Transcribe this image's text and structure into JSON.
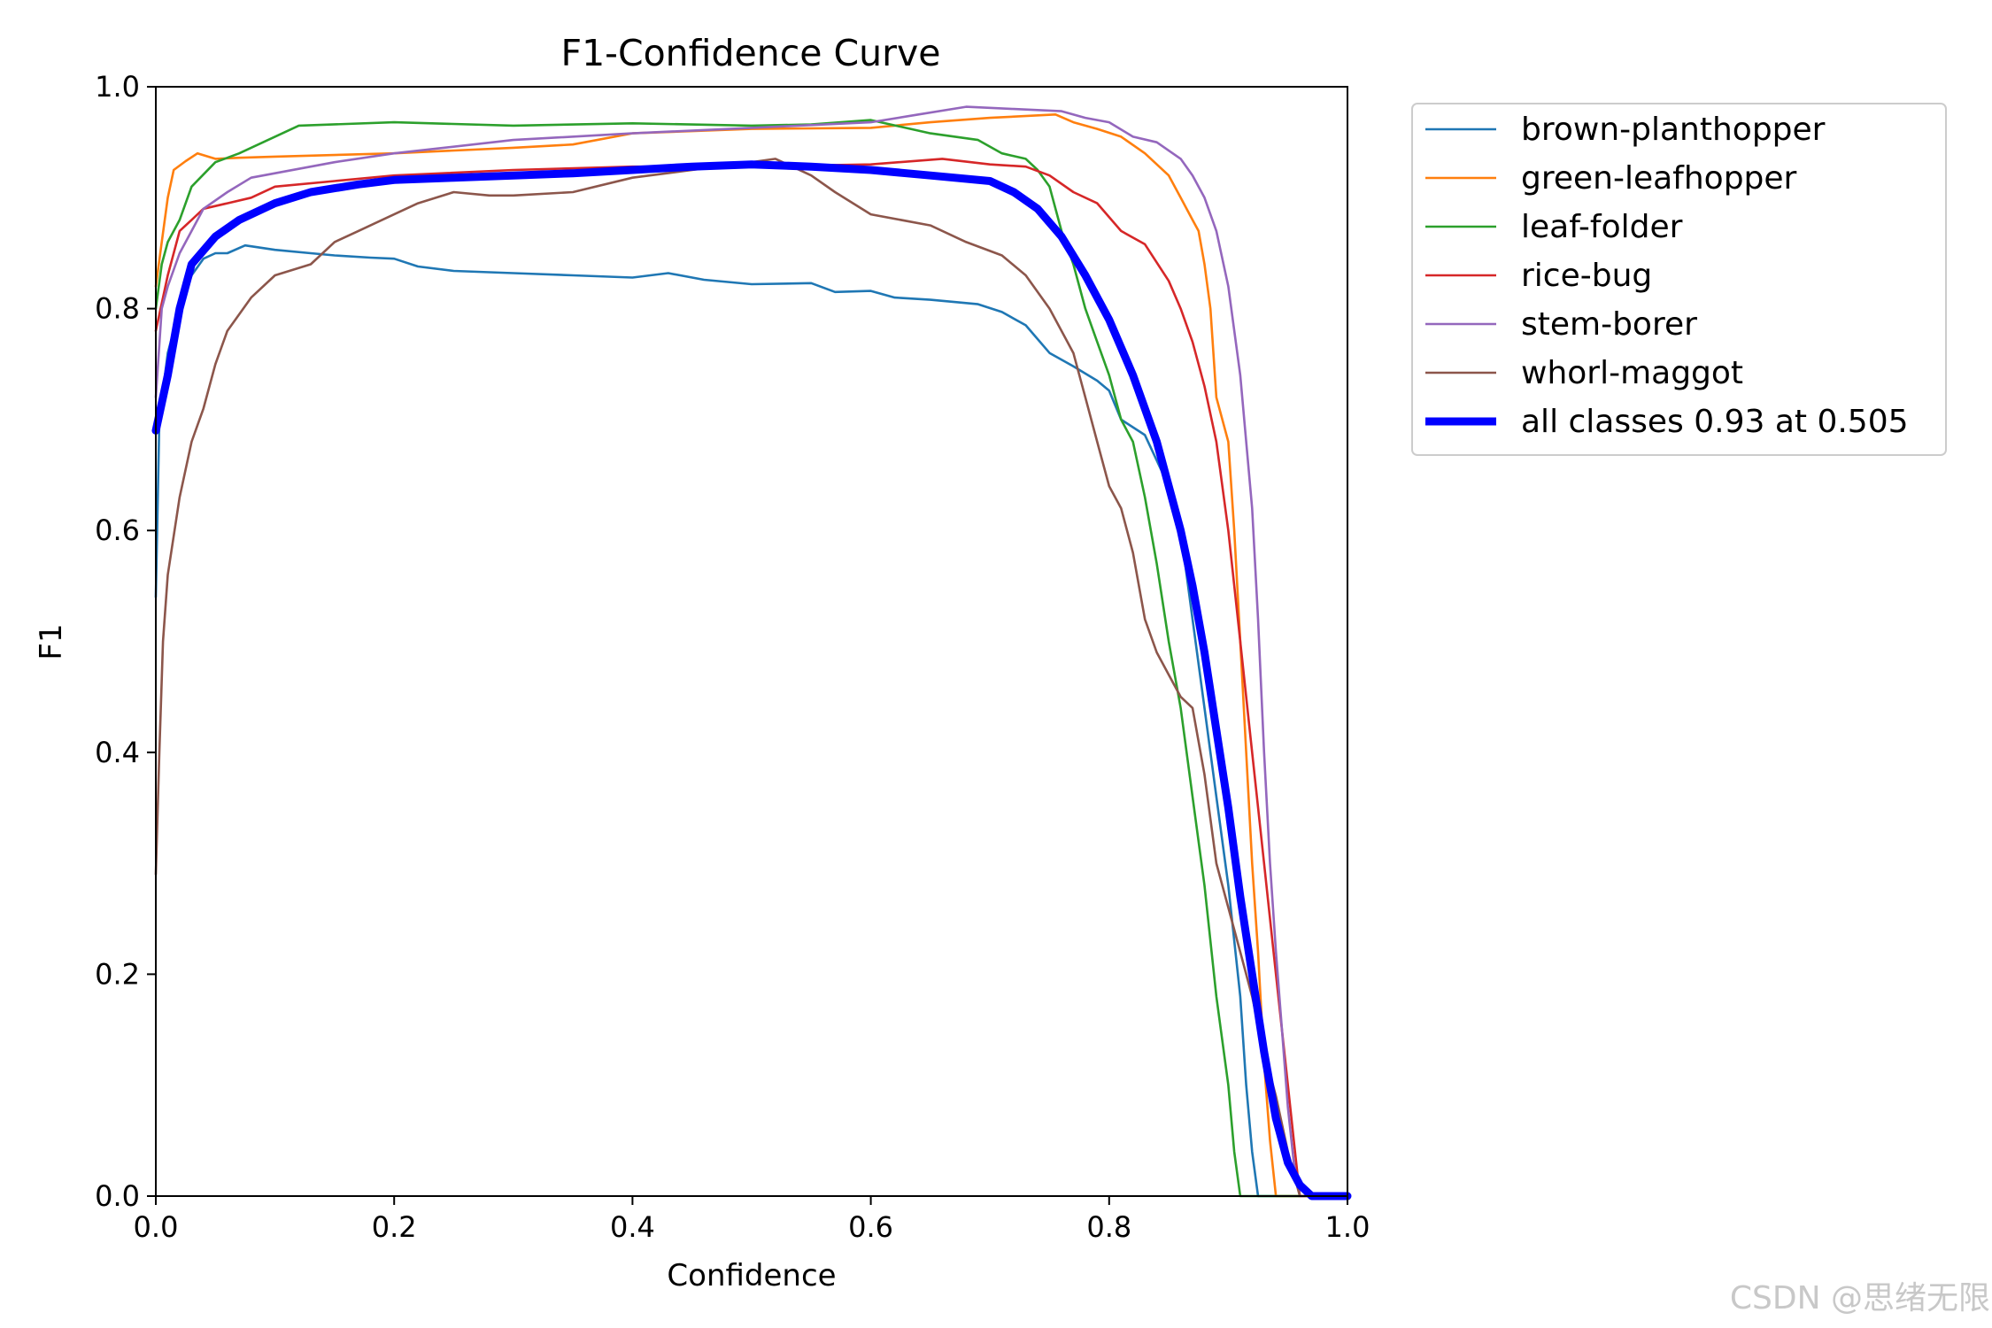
{
  "chart_data": {
    "type": "line",
    "title": "F1-Confidence Curve",
    "xlabel": "Confidence",
    "ylabel": "F1",
    "xlim": [
      0,
      1
    ],
    "ylim": [
      0,
      1
    ],
    "x_ticks": [
      "0.0",
      "0.2",
      "0.4",
      "0.6",
      "0.8",
      "1.0"
    ],
    "y_ticks": [
      "0.0",
      "0.2",
      "0.4",
      "0.6",
      "0.8",
      "1.0"
    ],
    "grid": false,
    "legend_position": "outside-top-right",
    "series": [
      {
        "name": "brown-planthopper",
        "color": "#1f77b4",
        "line_width": "thin",
        "points": [
          [
            0.0,
            0.54
          ],
          [
            0.003,
            0.7
          ],
          [
            0.01,
            0.76
          ],
          [
            0.02,
            0.8
          ],
          [
            0.03,
            0.83
          ],
          [
            0.04,
            0.845
          ],
          [
            0.05,
            0.85
          ],
          [
            0.06,
            0.85
          ],
          [
            0.075,
            0.857
          ],
          [
            0.1,
            0.853
          ],
          [
            0.13,
            0.85
          ],
          [
            0.15,
            0.848
          ],
          [
            0.18,
            0.846
          ],
          [
            0.2,
            0.845
          ],
          [
            0.22,
            0.838
          ],
          [
            0.25,
            0.834
          ],
          [
            0.3,
            0.832
          ],
          [
            0.35,
            0.83
          ],
          [
            0.4,
            0.828
          ],
          [
            0.43,
            0.832
          ],
          [
            0.46,
            0.826
          ],
          [
            0.5,
            0.822
          ],
          [
            0.55,
            0.823
          ],
          [
            0.57,
            0.815
          ],
          [
            0.6,
            0.816
          ],
          [
            0.62,
            0.81
          ],
          [
            0.65,
            0.808
          ],
          [
            0.69,
            0.804
          ],
          [
            0.71,
            0.797
          ],
          [
            0.73,
            0.785
          ],
          [
            0.75,
            0.76
          ],
          [
            0.77,
            0.748
          ],
          [
            0.79,
            0.735
          ],
          [
            0.8,
            0.726
          ],
          [
            0.81,
            0.7
          ],
          [
            0.83,
            0.686
          ],
          [
            0.85,
            0.64
          ],
          [
            0.86,
            0.6
          ],
          [
            0.87,
            0.52
          ],
          [
            0.88,
            0.44
          ],
          [
            0.89,
            0.36
          ],
          [
            0.9,
            0.28
          ],
          [
            0.91,
            0.18
          ],
          [
            0.915,
            0.1
          ],
          [
            0.92,
            0.04
          ],
          [
            0.925,
            0.0
          ],
          [
            1.0,
            0.0
          ]
        ]
      },
      {
        "name": "green-leafhopper",
        "color": "#ff7f0e",
        "line_width": "thin",
        "points": [
          [
            0.0,
            0.82
          ],
          [
            0.005,
            0.86
          ],
          [
            0.01,
            0.9
          ],
          [
            0.015,
            0.925
          ],
          [
            0.025,
            0.933
          ],
          [
            0.035,
            0.94
          ],
          [
            0.05,
            0.935
          ],
          [
            0.07,
            0.936
          ],
          [
            0.1,
            0.937
          ],
          [
            0.2,
            0.94
          ],
          [
            0.3,
            0.945
          ],
          [
            0.35,
            0.948
          ],
          [
            0.4,
            0.958
          ],
          [
            0.5,
            0.962
          ],
          [
            0.6,
            0.963
          ],
          [
            0.65,
            0.968
          ],
          [
            0.7,
            0.972
          ],
          [
            0.755,
            0.975
          ],
          [
            0.77,
            0.968
          ],
          [
            0.79,
            0.962
          ],
          [
            0.81,
            0.955
          ],
          [
            0.83,
            0.94
          ],
          [
            0.85,
            0.92
          ],
          [
            0.86,
            0.9
          ],
          [
            0.87,
            0.88
          ],
          [
            0.875,
            0.87
          ],
          [
            0.88,
            0.84
          ],
          [
            0.885,
            0.8
          ],
          [
            0.89,
            0.72
          ],
          [
            0.9,
            0.68
          ],
          [
            0.905,
            0.6
          ],
          [
            0.91,
            0.5
          ],
          [
            0.915,
            0.4
          ],
          [
            0.92,
            0.3
          ],
          [
            0.925,
            0.22
          ],
          [
            0.93,
            0.12
          ],
          [
            0.935,
            0.05
          ],
          [
            0.94,
            0.0
          ],
          [
            1.0,
            0.0
          ]
        ]
      },
      {
        "name": "leaf-folder",
        "color": "#2ca02c",
        "line_width": "thin",
        "points": [
          [
            0.0,
            0.8
          ],
          [
            0.005,
            0.84
          ],
          [
            0.01,
            0.86
          ],
          [
            0.02,
            0.88
          ],
          [
            0.03,
            0.91
          ],
          [
            0.05,
            0.932
          ],
          [
            0.07,
            0.94
          ],
          [
            0.09,
            0.95
          ],
          [
            0.1,
            0.955
          ],
          [
            0.12,
            0.965
          ],
          [
            0.2,
            0.968
          ],
          [
            0.3,
            0.965
          ],
          [
            0.4,
            0.967
          ],
          [
            0.5,
            0.965
          ],
          [
            0.55,
            0.966
          ],
          [
            0.6,
            0.97
          ],
          [
            0.65,
            0.958
          ],
          [
            0.69,
            0.952
          ],
          [
            0.71,
            0.94
          ],
          [
            0.73,
            0.935
          ],
          [
            0.74,
            0.925
          ],
          [
            0.75,
            0.91
          ],
          [
            0.76,
            0.87
          ],
          [
            0.77,
            0.84
          ],
          [
            0.78,
            0.8
          ],
          [
            0.79,
            0.77
          ],
          [
            0.8,
            0.74
          ],
          [
            0.81,
            0.7
          ],
          [
            0.82,
            0.68
          ],
          [
            0.83,
            0.63
          ],
          [
            0.84,
            0.57
          ],
          [
            0.85,
            0.5
          ],
          [
            0.86,
            0.44
          ],
          [
            0.87,
            0.36
          ],
          [
            0.88,
            0.28
          ],
          [
            0.89,
            0.18
          ],
          [
            0.9,
            0.1
          ],
          [
            0.905,
            0.04
          ],
          [
            0.91,
            0.0
          ],
          [
            1.0,
            0.0
          ]
        ]
      },
      {
        "name": "rice-bug",
        "color": "#d62728",
        "line_width": "thin",
        "points": [
          [
            0.0,
            0.78
          ],
          [
            0.01,
            0.83
          ],
          [
            0.02,
            0.87
          ],
          [
            0.03,
            0.88
          ],
          [
            0.04,
            0.89
          ],
          [
            0.06,
            0.895
          ],
          [
            0.08,
            0.9
          ],
          [
            0.1,
            0.91
          ],
          [
            0.15,
            0.915
          ],
          [
            0.2,
            0.92
          ],
          [
            0.3,
            0.925
          ],
          [
            0.4,
            0.928
          ],
          [
            0.5,
            0.928
          ],
          [
            0.6,
            0.93
          ],
          [
            0.66,
            0.935
          ],
          [
            0.7,
            0.93
          ],
          [
            0.73,
            0.928
          ],
          [
            0.75,
            0.92
          ],
          [
            0.77,
            0.905
          ],
          [
            0.79,
            0.895
          ],
          [
            0.81,
            0.87
          ],
          [
            0.83,
            0.858
          ],
          [
            0.85,
            0.825
          ],
          [
            0.86,
            0.8
          ],
          [
            0.87,
            0.77
          ],
          [
            0.88,
            0.73
          ],
          [
            0.89,
            0.68
          ],
          [
            0.9,
            0.6
          ],
          [
            0.91,
            0.5
          ],
          [
            0.92,
            0.4
          ],
          [
            0.93,
            0.3
          ],
          [
            0.94,
            0.2
          ],
          [
            0.95,
            0.1
          ],
          [
            0.955,
            0.05
          ],
          [
            0.96,
            0.0
          ],
          [
            1.0,
            0.0
          ]
        ]
      },
      {
        "name": "stem-borer",
        "color": "#9467bd",
        "line_width": "thin",
        "points": [
          [
            0.0,
            0.72
          ],
          [
            0.005,
            0.8
          ],
          [
            0.01,
            0.82
          ],
          [
            0.02,
            0.85
          ],
          [
            0.03,
            0.87
          ],
          [
            0.04,
            0.89
          ],
          [
            0.06,
            0.905
          ],
          [
            0.08,
            0.918
          ],
          [
            0.1,
            0.922
          ],
          [
            0.15,
            0.932
          ],
          [
            0.2,
            0.94
          ],
          [
            0.3,
            0.952
          ],
          [
            0.4,
            0.958
          ],
          [
            0.5,
            0.963
          ],
          [
            0.6,
            0.968
          ],
          [
            0.64,
            0.975
          ],
          [
            0.68,
            0.982
          ],
          [
            0.72,
            0.98
          ],
          [
            0.76,
            0.978
          ],
          [
            0.78,
            0.972
          ],
          [
            0.8,
            0.968
          ],
          [
            0.82,
            0.955
          ],
          [
            0.84,
            0.95
          ],
          [
            0.86,
            0.935
          ],
          [
            0.87,
            0.92
          ],
          [
            0.88,
            0.9
          ],
          [
            0.89,
            0.87
          ],
          [
            0.9,
            0.82
          ],
          [
            0.91,
            0.74
          ],
          [
            0.92,
            0.62
          ],
          [
            0.925,
            0.52
          ],
          [
            0.93,
            0.4
          ],
          [
            0.935,
            0.3
          ],
          [
            0.94,
            0.22
          ],
          [
            0.945,
            0.15
          ],
          [
            0.95,
            0.08
          ],
          [
            0.955,
            0.03
          ],
          [
            0.96,
            0.0
          ],
          [
            1.0,
            0.0
          ]
        ]
      },
      {
        "name": "whorl-maggot",
        "color": "#8c564b",
        "line_width": "thin",
        "points": [
          [
            0.0,
            0.29
          ],
          [
            0.003,
            0.4
          ],
          [
            0.006,
            0.5
          ],
          [
            0.01,
            0.56
          ],
          [
            0.02,
            0.63
          ],
          [
            0.03,
            0.68
          ],
          [
            0.04,
            0.71
          ],
          [
            0.05,
            0.75
          ],
          [
            0.06,
            0.78
          ],
          [
            0.08,
            0.81
          ],
          [
            0.1,
            0.83
          ],
          [
            0.13,
            0.84
          ],
          [
            0.15,
            0.86
          ],
          [
            0.17,
            0.87
          ],
          [
            0.2,
            0.885
          ],
          [
            0.22,
            0.895
          ],
          [
            0.25,
            0.905
          ],
          [
            0.28,
            0.902
          ],
          [
            0.3,
            0.902
          ],
          [
            0.35,
            0.905
          ],
          [
            0.4,
            0.918
          ],
          [
            0.45,
            0.925
          ],
          [
            0.5,
            0.932
          ],
          [
            0.52,
            0.935
          ],
          [
            0.55,
            0.92
          ],
          [
            0.57,
            0.905
          ],
          [
            0.6,
            0.885
          ],
          [
            0.65,
            0.875
          ],
          [
            0.68,
            0.86
          ],
          [
            0.71,
            0.848
          ],
          [
            0.73,
            0.83
          ],
          [
            0.75,
            0.8
          ],
          [
            0.77,
            0.76
          ],
          [
            0.78,
            0.72
          ],
          [
            0.79,
            0.68
          ],
          [
            0.8,
            0.64
          ],
          [
            0.81,
            0.62
          ],
          [
            0.82,
            0.58
          ],
          [
            0.83,
            0.52
          ],
          [
            0.84,
            0.49
          ],
          [
            0.85,
            0.47
          ],
          [
            0.86,
            0.45
          ],
          [
            0.87,
            0.44
          ],
          [
            0.88,
            0.38
          ],
          [
            0.89,
            0.3
          ],
          [
            0.9,
            0.26
          ],
          [
            0.91,
            0.22
          ],
          [
            0.92,
            0.18
          ],
          [
            0.93,
            0.13
          ],
          [
            0.94,
            0.09
          ],
          [
            0.95,
            0.04
          ],
          [
            0.96,
            0.0
          ],
          [
            1.0,
            0.0
          ]
        ]
      },
      {
        "name": "all classes 0.93 at 0.505",
        "color": "#0000ff",
        "line_width": "thick",
        "points": [
          [
            0.0,
            0.69
          ],
          [
            0.01,
            0.74
          ],
          [
            0.02,
            0.8
          ],
          [
            0.03,
            0.84
          ],
          [
            0.05,
            0.865
          ],
          [
            0.07,
            0.88
          ],
          [
            0.1,
            0.895
          ],
          [
            0.13,
            0.905
          ],
          [
            0.17,
            0.912
          ],
          [
            0.2,
            0.916
          ],
          [
            0.25,
            0.918
          ],
          [
            0.3,
            0.92
          ],
          [
            0.35,
            0.922
          ],
          [
            0.4,
            0.925
          ],
          [
            0.45,
            0.928
          ],
          [
            0.5,
            0.93
          ],
          [
            0.55,
            0.928
          ],
          [
            0.6,
            0.925
          ],
          [
            0.65,
            0.92
          ],
          [
            0.7,
            0.915
          ],
          [
            0.72,
            0.905
          ],
          [
            0.74,
            0.89
          ],
          [
            0.76,
            0.865
          ],
          [
            0.78,
            0.83
          ],
          [
            0.8,
            0.79
          ],
          [
            0.82,
            0.74
          ],
          [
            0.84,
            0.68
          ],
          [
            0.86,
            0.6
          ],
          [
            0.87,
            0.55
          ],
          [
            0.88,
            0.49
          ],
          [
            0.89,
            0.42
          ],
          [
            0.9,
            0.35
          ],
          [
            0.91,
            0.27
          ],
          [
            0.92,
            0.2
          ],
          [
            0.93,
            0.13
          ],
          [
            0.94,
            0.07
          ],
          [
            0.95,
            0.03
          ],
          [
            0.96,
            0.01
          ],
          [
            0.97,
            0.0
          ],
          [
            1.0,
            0.0
          ]
        ]
      }
    ]
  },
  "watermark": "CSDN @思绪无限"
}
